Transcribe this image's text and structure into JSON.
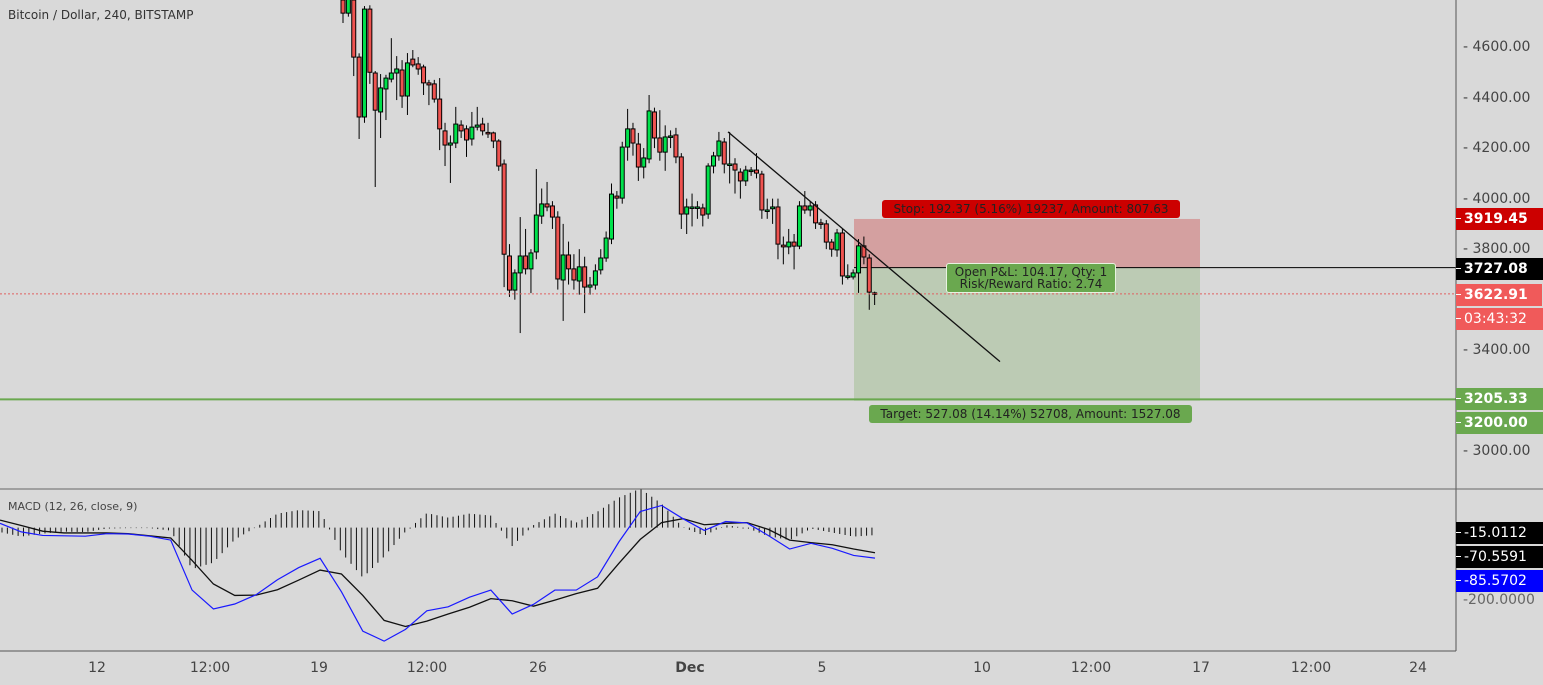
{
  "header": {
    "title": "Bitcoin / Dollar, 240, BITSTAMP"
  },
  "colors": {
    "background": "#d9d9d9",
    "up": "#00e14b",
    "down": "#ef5350",
    "stop": "#cc0000",
    "target": "#6aa84f",
    "macd": "#1a1aff",
    "signal": "#111111",
    "last_price": "#f05a5a"
  },
  "price_axis": {
    "ticks": [
      "4600.00",
      "4400.00",
      "4200.00",
      "4000.00",
      "3800.00",
      "3400.00",
      "3000.00"
    ]
  },
  "price_tags": {
    "stop": "3919.45",
    "entry": "3727.08",
    "last": "3622.91",
    "countdown": "03:43:32",
    "line": "3205.33",
    "target": "3200.00"
  },
  "time_axis": {
    "labels": [
      "12",
      "12:00",
      "19",
      "12:00",
      "26",
      "Dec",
      "5",
      "10",
      "12:00",
      "17",
      "12:00",
      "24"
    ]
  },
  "position": {
    "entry": 3727.08,
    "stop": 3919.45,
    "target": 3200.0,
    "last": 3622.91,
    "hline": 3205.33,
    "stop_label": "Stop: 192.37 (5.16%) 19237, Amount: 807.63",
    "pnl_label": "Open P&L: 104.17, Qty: 1",
    "rr_label": "Risk/Reward Ratio: 2.74",
    "target_label": "Target: 527.08 (14.14%) 52708, Amount: 1527.08"
  },
  "macd": {
    "title": "MACD (12, 26, close, 9)",
    "tick": "-200.0000",
    "tags": {
      "histogram": "-15.0112",
      "signal": "-70.5591",
      "macd": "-85.5702"
    }
  },
  "chart_data": {
    "type": "candlestick",
    "title": "Bitcoin / Dollar, 240, BITSTAMP",
    "ylim": [
      2830,
      4770
    ],
    "candles_ohlc": [
      [
        4786,
        4800,
        4695,
        4734
      ],
      [
        4734,
        4800,
        4720,
        4790
      ],
      [
        4786,
        4800,
        4485,
        4560
      ],
      [
        4560,
        4575,
        4236,
        4323
      ],
      [
        4323,
        4762,
        4300,
        4750
      ],
      [
        4750,
        4765,
        4454,
        4500
      ],
      [
        4497,
        4505,
        4046,
        4350
      ],
      [
        4343,
        4493,
        4240,
        4438
      ],
      [
        4434,
        4490,
        4311,
        4477
      ],
      [
        4473,
        4635,
        4460,
        4497
      ],
      [
        4497,
        4564,
        4390,
        4513
      ],
      [
        4509,
        4548,
        4359,
        4406
      ],
      [
        4406,
        4576,
        4331,
        4537
      ],
      [
        4552,
        4588,
        4520,
        4529
      ],
      [
        4533,
        4560,
        4490,
        4513
      ],
      [
        4521,
        4530,
        4410,
        4458
      ],
      [
        4458,
        4470,
        4370,
        4450
      ],
      [
        4454,
        4470,
        4380,
        4394
      ],
      [
        4394,
        4477,
        4192,
        4276
      ],
      [
        4268,
        4300,
        4129,
        4212
      ],
      [
        4212,
        4250,
        4062,
        4220
      ],
      [
        4220,
        4363,
        4200,
        4295
      ],
      [
        4291,
        4310,
        4240,
        4268
      ],
      [
        4276,
        4290,
        4165,
        4232
      ],
      [
        4236,
        4343,
        4210,
        4283
      ],
      [
        4283,
        4363,
        4270,
        4291
      ],
      [
        4295,
        4320,
        4250,
        4268
      ],
      [
        4262,
        4300,
        4240,
        4260
      ],
      [
        4260,
        4265,
        4200,
        4228
      ],
      [
        4228,
        4235,
        4110,
        4129
      ],
      [
        4137,
        4155,
        3650,
        3780
      ],
      [
        3773,
        3820,
        3611,
        3638
      ],
      [
        3638,
        3720,
        3600,
        3706
      ],
      [
        3706,
        3927,
        3468,
        3773
      ],
      [
        3773,
        3880,
        3700,
        3722
      ],
      [
        3722,
        3800,
        3626,
        3785
      ],
      [
        3789,
        4117,
        3760,
        3935
      ],
      [
        3931,
        4040,
        3900,
        3979
      ],
      [
        3979,
        4066,
        3950,
        3967
      ],
      [
        3971,
        3990,
        3880,
        3927
      ],
      [
        3927,
        3950,
        3640,
        3682
      ],
      [
        3678,
        3900,
        3516,
        3777
      ],
      [
        3777,
        3830,
        3660,
        3722
      ],
      [
        3722,
        3780,
        3640,
        3678
      ],
      [
        3674,
        3800,
        3620,
        3730
      ],
      [
        3730,
        3770,
        3547,
        3650
      ],
      [
        3650,
        3690,
        3620,
        3658
      ],
      [
        3658,
        3740,
        3640,
        3714
      ],
      [
        3718,
        3800,
        3700,
        3765
      ],
      [
        3765,
        3870,
        3750,
        3844
      ],
      [
        3840,
        4060,
        3820,
        4018
      ],
      [
        4010,
        4030,
        3960,
        4002
      ],
      [
        4002,
        4225,
        3980,
        4204
      ],
      [
        4204,
        4355,
        4150,
        4276
      ],
      [
        4276,
        4300,
        4170,
        4220
      ],
      [
        4216,
        4260,
        4070,
        4125
      ],
      [
        4125,
        4200,
        4080,
        4161
      ],
      [
        4157,
        4410,
        4140,
        4347
      ],
      [
        4343,
        4360,
        4200,
        4240
      ],
      [
        4240,
        4350,
        4150,
        4184
      ],
      [
        4184,
        4290,
        4110,
        4244
      ],
      [
        4248,
        4270,
        4200,
        4248
      ],
      [
        4252,
        4280,
        4140,
        4165
      ],
      [
        4165,
        4180,
        3880,
        3939
      ],
      [
        3939,
        4000,
        3860,
        3967
      ],
      [
        3967,
        4020,
        3890,
        3967
      ],
      [
        3967,
        3990,
        3920,
        3967
      ],
      [
        3963,
        3980,
        3890,
        3935
      ],
      [
        3939,
        4140,
        3920,
        4129
      ],
      [
        4129,
        4185,
        4100,
        4169
      ],
      [
        4169,
        4264,
        4150,
        4228
      ],
      [
        4224,
        4240,
        4100,
        4137
      ],
      [
        4137,
        4264,
        4060,
        4137
      ],
      [
        4137,
        4160,
        4020,
        4113
      ],
      [
        4105,
        4120,
        4000,
        4070
      ],
      [
        4070,
        4130,
        4050,
        4113
      ],
      [
        4113,
        4125,
        4090,
        4113
      ],
      [
        4113,
        4180,
        4080,
        4101
      ],
      [
        4097,
        4110,
        3920,
        3955
      ],
      [
        3955,
        4000,
        3920,
        3955
      ],
      [
        3960,
        4000,
        3900,
        3967
      ],
      [
        3967,
        4000,
        3760,
        3820
      ],
      [
        3816,
        3850,
        3740,
        3809
      ],
      [
        3809,
        3880,
        3780,
        3828
      ],
      [
        3828,
        3860,
        3720,
        3812
      ],
      [
        3812,
        3990,
        3800,
        3971
      ],
      [
        3971,
        4030,
        3940,
        3955
      ],
      [
        3955,
        3990,
        3930,
        3971
      ],
      [
        3975,
        3990,
        3880,
        3904
      ],
      [
        3904,
        3920,
        3880,
        3900
      ],
      [
        3900,
        3915,
        3800,
        3828
      ],
      [
        3828,
        3840,
        3770,
        3800
      ],
      [
        3797,
        3880,
        3770,
        3864
      ],
      [
        3864,
        3880,
        3660,
        3694
      ],
      [
        3694,
        3740,
        3680,
        3694
      ],
      [
        3690,
        3720,
        3680,
        3706
      ],
      [
        3706,
        3840,
        3627,
        3813
      ],
      [
        3813,
        3850,
        3740,
        3769
      ],
      [
        3765,
        3780,
        3560,
        3630
      ],
      [
        3627,
        3632,
        3579,
        3622.91
      ]
    ],
    "trendline": {
      "start_price": 4264,
      "end_price": 3355
    },
    "macd_series": {
      "macd": [
        12,
        -12,
        -22,
        -23,
        -24,
        -17,
        -18,
        -24,
        -35,
        -175,
        -228,
        -214,
        -188,
        -146,
        -112,
        -86,
        -180,
        -290,
        -318,
        -285,
        -233,
        -222,
        -195,
        -175,
        -242,
        -215,
        -175,
        -175,
        -138,
        -40,
        45,
        62,
        25,
        -8,
        17,
        13,
        -22,
        -60,
        -44,
        -58,
        -78,
        -85.5702
      ],
      "signal": [
        21,
        6,
        -10,
        -15,
        -15,
        -15,
        -17,
        -23,
        -29,
        -92,
        -158,
        -190,
        -189,
        -174,
        -147,
        -119,
        -130,
        -190,
        -260,
        -277,
        -262,
        -242,
        -223,
        -199,
        -205,
        -220,
        -203,
        -185,
        -170,
        -100,
        -33,
        14,
        25,
        8,
        12,
        14,
        -5,
        -35,
        -42,
        -48,
        -60,
        -70.5591
      ]
    }
  }
}
